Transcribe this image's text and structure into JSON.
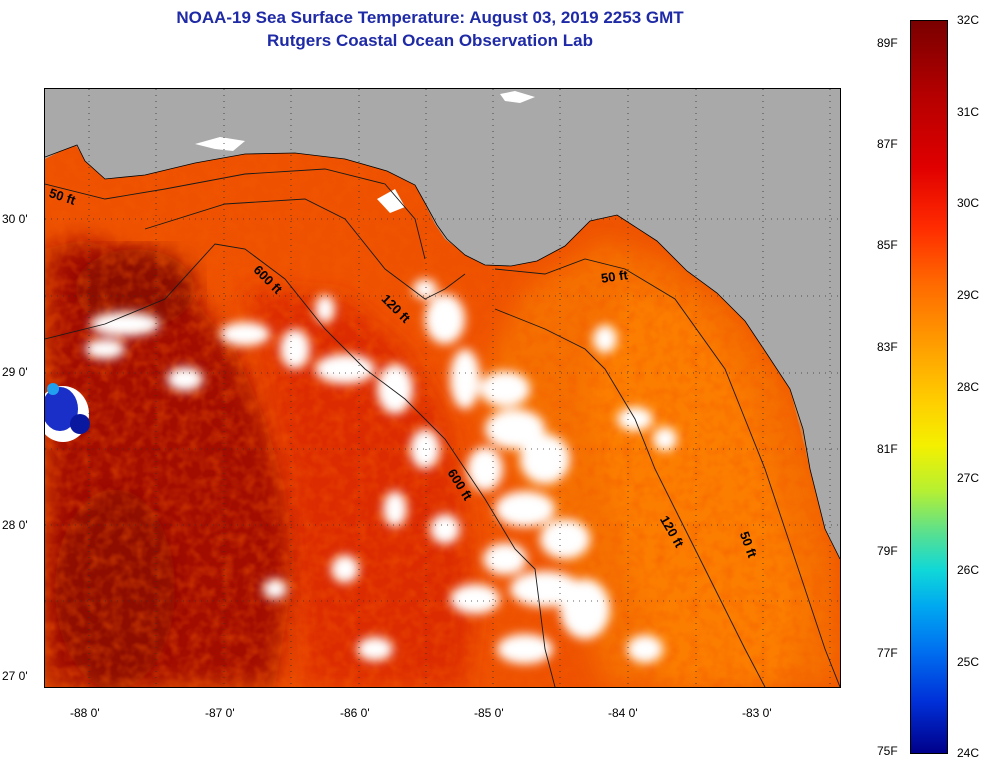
{
  "header": {
    "title_line1": "NOAA-19 Sea Surface Temperature:  August 03, 2019 2253 GMT",
    "title_line2": "Rutgers Coastal Ocean Observation Lab"
  },
  "map": {
    "latitude_labels": [
      "30 0'",
      "29 0'",
      "28 0'",
      "27 0'"
    ],
    "longitude_labels": [
      "-88 0'",
      "-87 0'",
      "-86 0'",
      "-85 0'",
      "-84 0'",
      "-83 0'"
    ],
    "contour_labels": [
      "50 ft",
      "600 ft",
      "120 ft",
      "50 ft",
      "600 ft",
      "120 ft",
      "50 ft"
    ],
    "colors": {
      "land": "#a9a9a9",
      "cloud": "#ffffff",
      "warm_core": "#9a0a00",
      "sea_red": "#e42a00",
      "sea_orange": "#f26a00",
      "cool_patch": "#1030c8"
    }
  },
  "colorbar": {
    "fahrenheit_labels": [
      "89F",
      "87F",
      "85F",
      "83F",
      "81F",
      "79F",
      "77F",
      "75F"
    ],
    "celsius_labels": [
      "32C",
      "31C",
      "30C",
      "29C",
      "28C",
      "27C",
      "26C",
      "25C",
      "24C"
    ]
  }
}
